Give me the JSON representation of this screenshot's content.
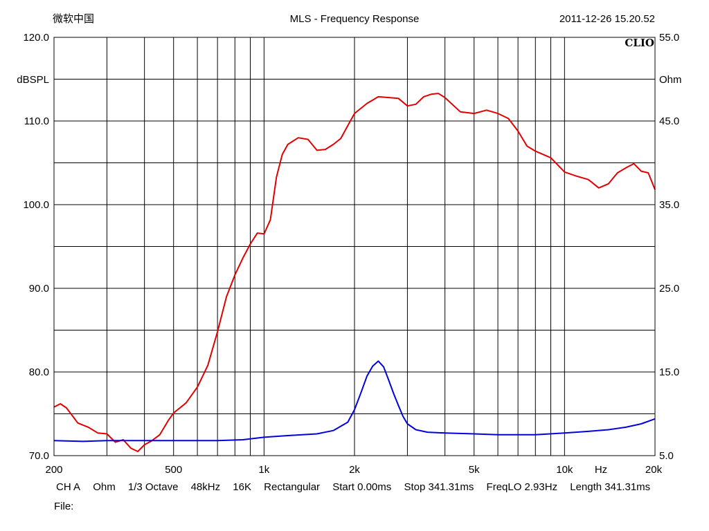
{
  "header": {
    "left": "微软中国",
    "title": "MLS - Frequency Response",
    "timestamp": "2011-12-26 15.20.52",
    "brand": "CLIO"
  },
  "footer": {
    "items": [
      "CH A",
      "Ohm",
      "1/3 Octave",
      "48kHz",
      "16K",
      "Rectangular",
      "Start 0.00ms",
      "Stop 341.31ms",
      "FreqLO 2.93Hz",
      "Length 341.31ms"
    ],
    "file_label": "File:"
  },
  "chart_data": {
    "type": "line",
    "title": "MLS - Frequency Response",
    "x_scale": "log",
    "xlim": [
      200,
      20000
    ],
    "x_ticks": [
      {
        "value": 200,
        "label": "200"
      },
      {
        "value": 500,
        "label": "500"
      },
      {
        "value": 1000,
        "label": "1k"
      },
      {
        "value": 2000,
        "label": "2k"
      },
      {
        "value": 5000,
        "label": "5k"
      },
      {
        "value": 10000,
        "label": "10k"
      },
      {
        "value": 20000,
        "label": "20k"
      }
    ],
    "x_minor_ticks": [
      300,
      400,
      600,
      700,
      800,
      900,
      3000,
      4000,
      6000,
      7000,
      8000,
      9000
    ],
    "x_unit": "Hz",
    "y_left": {
      "label": "dBSPL",
      "lim": [
        70,
        120
      ],
      "ticks": [
        "70.0",
        "80.0",
        "90.0",
        "100.0",
        "110.0",
        "120.0"
      ]
    },
    "y_right": {
      "label": "Ohm",
      "lim": [
        5,
        55
      ],
      "ticks": [
        "5.0",
        "15.0",
        "25.0",
        "35.0",
        "45.0",
        "55.0"
      ]
    },
    "grid": true,
    "series": [
      {
        "axis": "left",
        "color": "#e00000",
        "x": [
          200,
          210,
          220,
          240,
          260,
          280,
          300,
          320,
          340,
          360,
          380,
          400,
          420,
          450,
          480,
          500,
          550,
          600,
          650,
          700,
          750,
          800,
          850,
          900,
          950,
          1000,
          1050,
          1100,
          1150,
          1200,
          1300,
          1400,
          1500,
          1600,
          1700,
          1800,
          2000,
          2200,
          2400,
          2600,
          2800,
          3000,
          3200,
          3400,
          3600,
          3800,
          4000,
          4500,
          5000,
          5500,
          6000,
          6500,
          7000,
          7500,
          8000,
          9000,
          10000,
          11000,
          12000,
          13000,
          14000,
          15000,
          16000,
          17000,
          18000,
          19000,
          20000
        ],
        "y": [
          75.8,
          76.2,
          75.7,
          73.9,
          73.4,
          72.7,
          72.6,
          71.6,
          71.9,
          70.9,
          70.5,
          71.3,
          71.7,
          72.5,
          74.2,
          75.1,
          76.3,
          78.2,
          80.8,
          84.8,
          89.0,
          91.6,
          93.6,
          95.3,
          96.6,
          96.5,
          98.2,
          103.3,
          106.0,
          107.2,
          108.0,
          107.8,
          106.5,
          106.6,
          107.2,
          107.9,
          110.9,
          112.1,
          112.9,
          112.8,
          112.7,
          111.8,
          112.0,
          112.9,
          113.2,
          113.3,
          112.8,
          111.1,
          110.9,
          111.3,
          110.9,
          110.3,
          108.8,
          107.0,
          106.4,
          105.6,
          103.9,
          103.4,
          103.0,
          102.0,
          102.5,
          103.8,
          104.4,
          104.9,
          104.0,
          103.8,
          101.8
        ]
      },
      {
        "axis": "right",
        "color": "#0000e0",
        "x": [
          200,
          250,
          300,
          400,
          500,
          700,
          850,
          1000,
          1200,
          1500,
          1700,
          1900,
          2000,
          2100,
          2200,
          2300,
          2400,
          2500,
          2600,
          2700,
          2800,
          2900,
          3000,
          3200,
          3500,
          4000,
          5000,
          6000,
          7000,
          8000,
          10000,
          12000,
          14000,
          16000,
          18000,
          20000
        ],
        "y": [
          6.8,
          6.7,
          6.8,
          6.8,
          6.8,
          6.8,
          6.9,
          7.2,
          7.4,
          7.6,
          8.0,
          9.0,
          10.5,
          12.5,
          14.5,
          15.7,
          16.3,
          15.6,
          14.0,
          12.4,
          11.0,
          9.7,
          8.8,
          8.1,
          7.8,
          7.7,
          7.6,
          7.5,
          7.5,
          7.5,
          7.7,
          7.9,
          8.1,
          8.4,
          8.8,
          9.4
        ]
      }
    ]
  }
}
